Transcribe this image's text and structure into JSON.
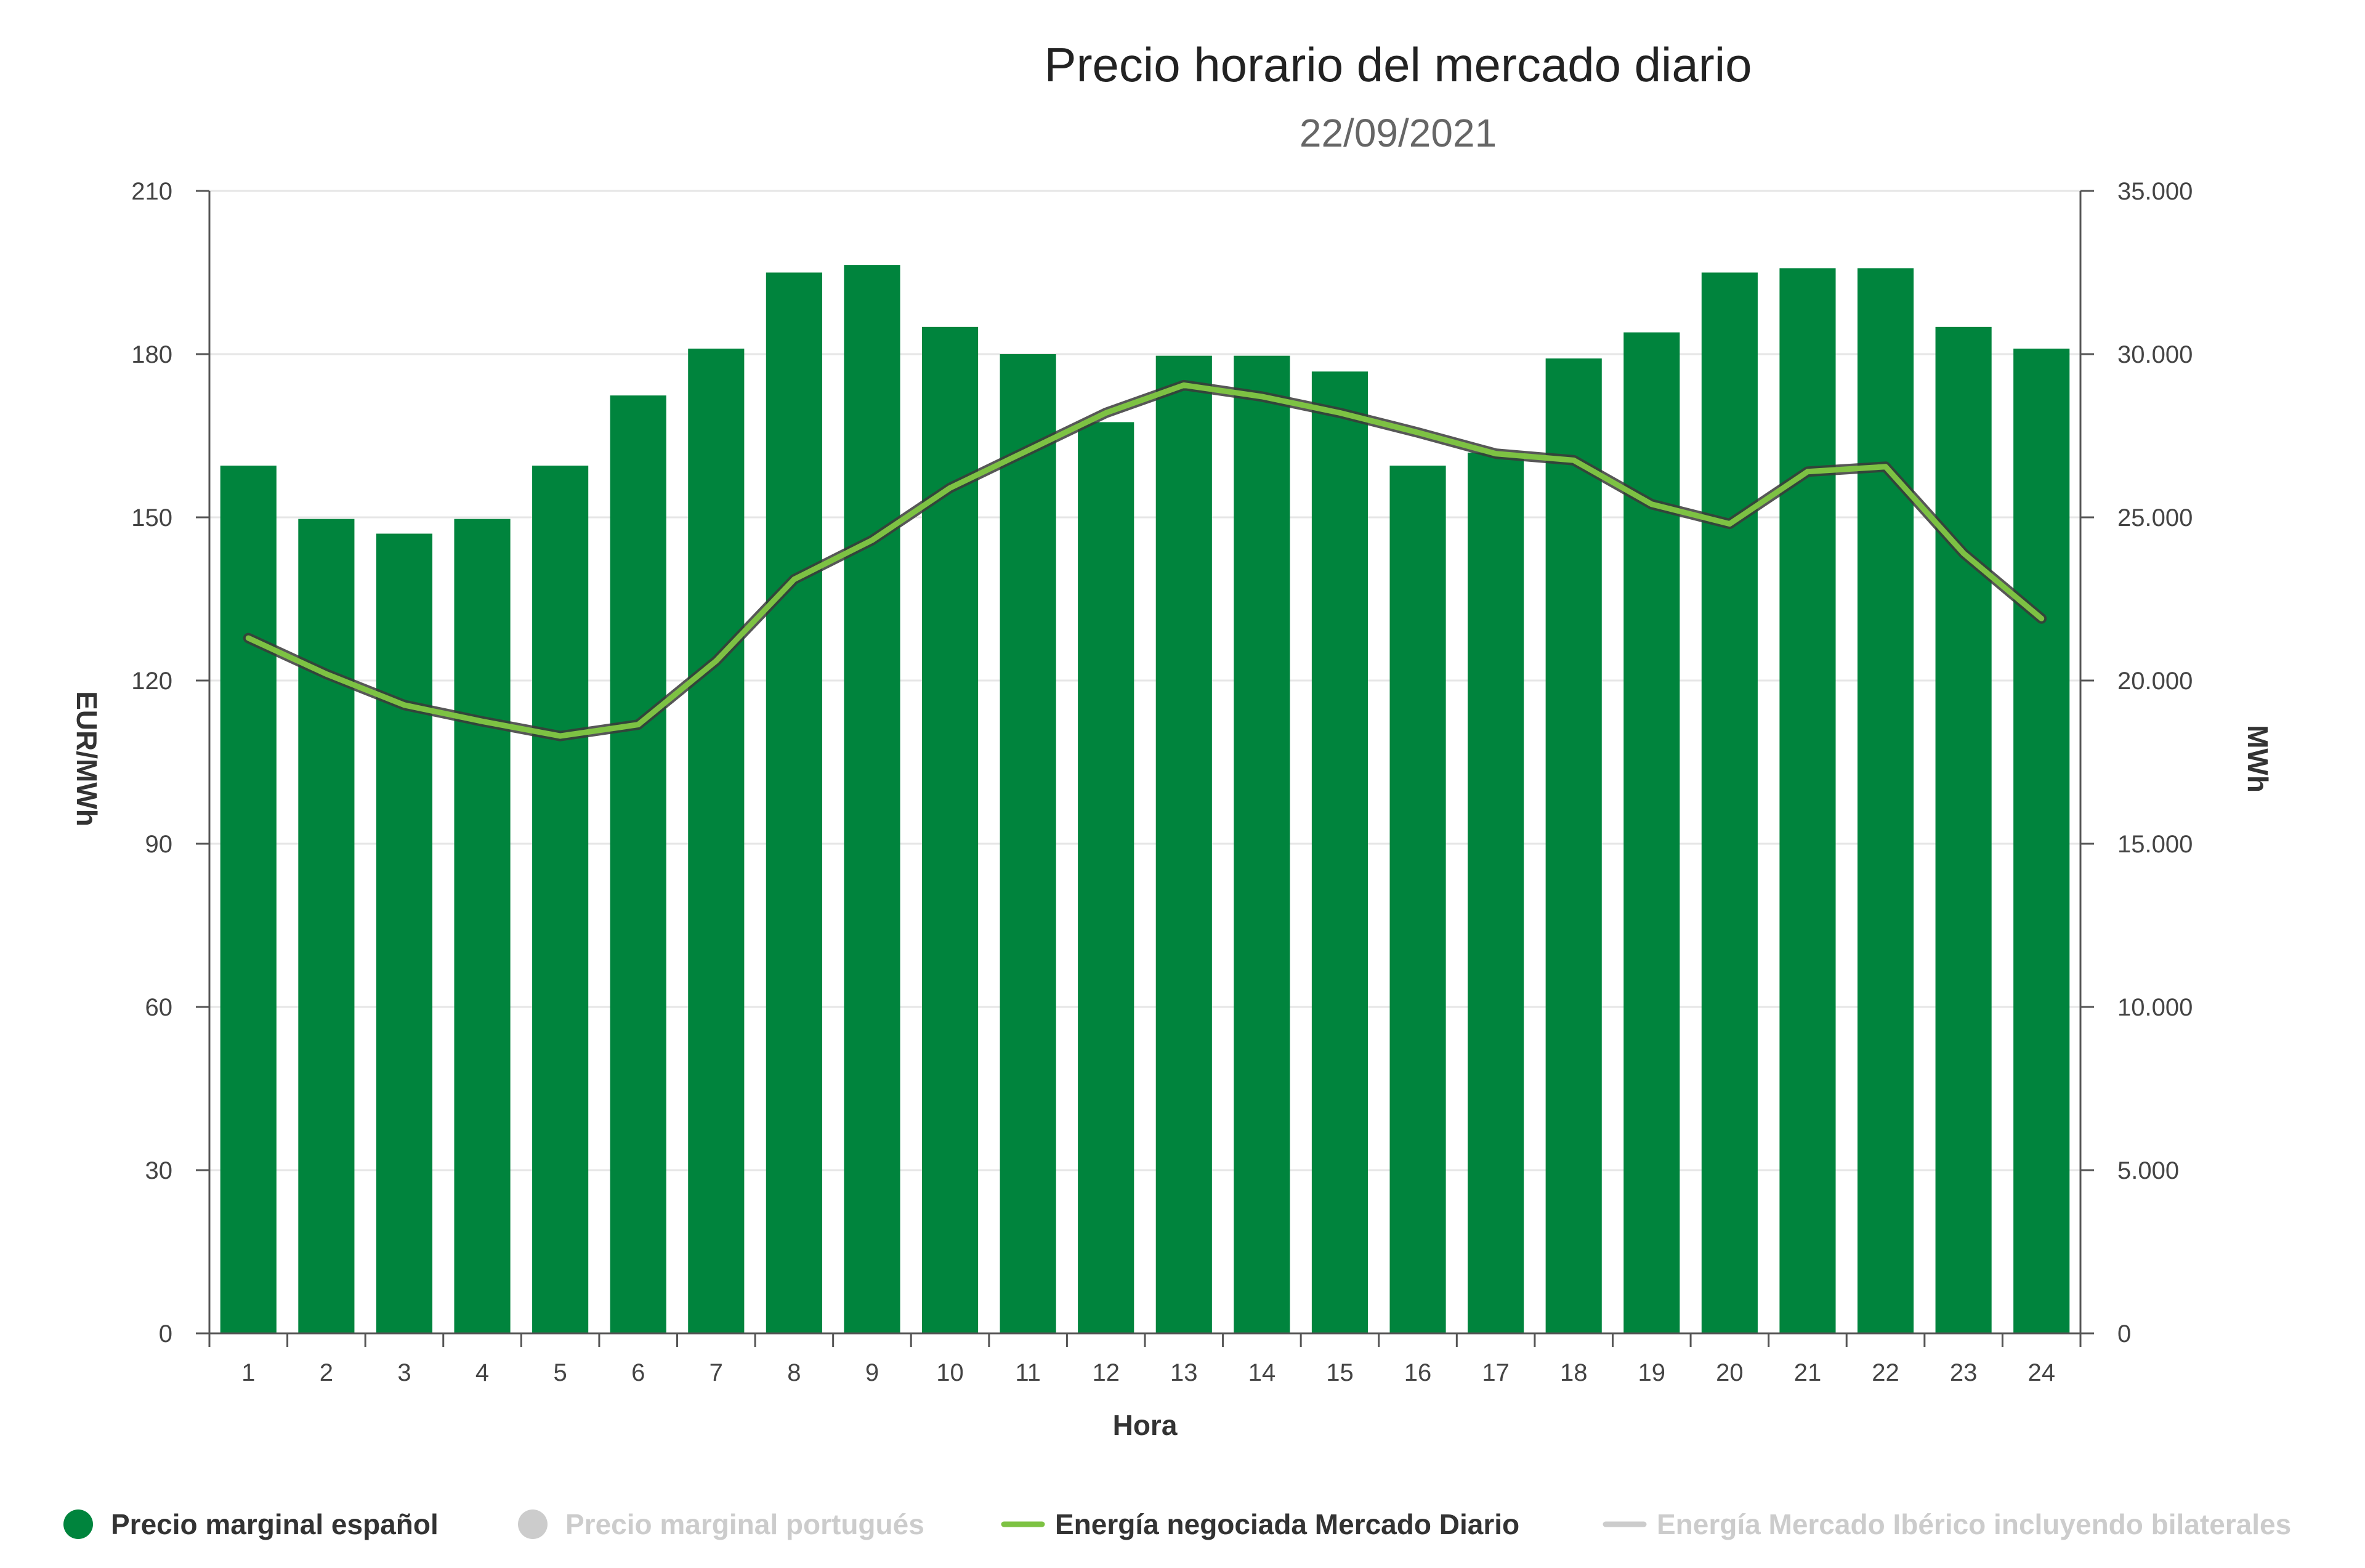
{
  "chart_data": {
    "type": "bar",
    "title": "Precio horario del mercado diario",
    "subtitle": "22/09/2021",
    "xlabel": "Hora",
    "ylabel_left": "EUR/MWh",
    "ylabel_right": "MWh",
    "categories": [
      "1",
      "2",
      "3",
      "4",
      "5",
      "6",
      "7",
      "8",
      "9",
      "10",
      "11",
      "12",
      "13",
      "14",
      "15",
      "16",
      "17",
      "18",
      "19",
      "20",
      "21",
      "22",
      "23",
      "24"
    ],
    "y_left": {
      "min": 0,
      "max": 210,
      "ticks": [
        0,
        30,
        60,
        90,
        120,
        150,
        180,
        210
      ]
    },
    "y_right": {
      "min": 0,
      "max": 35000,
      "ticks": [
        0,
        5000,
        10000,
        15000,
        20000,
        25000,
        30000,
        35000
      ],
      "tick_labels": [
        "0",
        "5.000",
        "10.000",
        "15.000",
        "20.000",
        "25.000",
        "30.000",
        "35.000"
      ]
    },
    "grid": true,
    "series": [
      {
        "name": "Precio marginal español",
        "type": "bar",
        "axis": "left",
        "color": "#00843d",
        "values": [
          159.5,
          149.7,
          147.0,
          149.7,
          159.5,
          172.4,
          181.0,
          195.0,
          196.4,
          185.0,
          180.0,
          167.5,
          179.7,
          179.7,
          176.8,
          159.5,
          161.9,
          179.2,
          184.0,
          195.0,
          195.8,
          195.8,
          185.0,
          181.0
        ]
      },
      {
        "name": "Energía negociada Mercado Diario",
        "type": "line",
        "axis": "right",
        "color": "#7dc243",
        "values": [
          21300,
          20200,
          19250,
          18750,
          18300,
          18650,
          20600,
          23100,
          24300,
          25900,
          27050,
          28200,
          29050,
          28700,
          28200,
          27600,
          26950,
          26750,
          25400,
          24800,
          26400,
          26550,
          23900,
          21900
        ]
      }
    ],
    "legend": {
      "position": "bottom",
      "items": [
        {
          "label": "Precio marginal español",
          "color": "#00843d",
          "symbol": "circle",
          "active": true
        },
        {
          "label": "Precio marginal portugués",
          "color": "#cccccc",
          "symbol": "circle",
          "active": false
        },
        {
          "label": "Energía negociada Mercado Diario",
          "color": "#7dc243",
          "symbol": "line",
          "active": true
        },
        {
          "label": "Energía Mercado Ibérico incluyendo bilaterales",
          "color": "#cccccc",
          "symbol": "line",
          "active": false
        }
      ]
    }
  }
}
